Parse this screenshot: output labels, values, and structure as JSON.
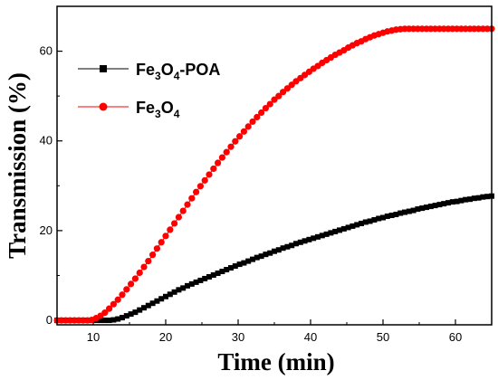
{
  "chart_data": {
    "type": "scatter",
    "xlabel": "Time (min)",
    "ylabel": "Transmission (%)",
    "xlim": [
      5,
      65
    ],
    "ylim": [
      -1,
      70
    ],
    "xticks": [
      10,
      20,
      30,
      40,
      50,
      60
    ],
    "yticks": [
      0,
      20,
      40,
      60
    ],
    "grid": false,
    "legend_position": "top-left",
    "series": [
      {
        "name": "Fe3O4-POA",
        "legend_parts": [
          {
            "text": "Fe",
            "sub": false
          },
          {
            "text": "3",
            "sub": true
          },
          {
            "text": "O",
            "sub": false
          },
          {
            "text": "4",
            "sub": true
          },
          {
            "text": "-POA",
            "sub": false
          }
        ],
        "color": "#000000",
        "marker": "square",
        "x_start": 5,
        "x_step": 0.6,
        "values": [
          0,
          0,
          0,
          0,
          0,
          0,
          0,
          0,
          0,
          0,
          0,
          0,
          0,
          0.1,
          0.3,
          0.6,
          1.0,
          1.4,
          1.8,
          2.3,
          2.8,
          3.3,
          3.8,
          4.3,
          4.8,
          5.3,
          5.8,
          6.3,
          6.8,
          7.2,
          7.7,
          8.1,
          8.5,
          8.9,
          9.3,
          9.7,
          10.1,
          10.5,
          10.9,
          11.3,
          11.7,
          12.1,
          12.5,
          12.8,
          13.2,
          13.6,
          14.0,
          14.3,
          14.7,
          15.0,
          15.4,
          15.7,
          16.1,
          16.4,
          16.7,
          17.1,
          17.4,
          17.7,
          18.0,
          18.3,
          18.6,
          18.9,
          19.2,
          19.5,
          19.8,
          20.1,
          20.4,
          20.7,
          21.0,
          21.3,
          21.6,
          21.9,
          22.1,
          22.4,
          22.7,
          22.9,
          23.2,
          23.4,
          23.6,
          23.9,
          24.1,
          24.3,
          24.5,
          24.8,
          25.0,
          25.2,
          25.4,
          25.6,
          25.8,
          26.0,
          26.2,
          26.4,
          26.5,
          26.7,
          26.9,
          27.0,
          27.2,
          27.3,
          27.5,
          27.6,
          27.7
        ]
      },
      {
        "name": "Fe3O4",
        "legend_parts": [
          {
            "text": "Fe",
            "sub": false
          },
          {
            "text": "3",
            "sub": true
          },
          {
            "text": "O",
            "sub": false
          },
          {
            "text": "4",
            "sub": true
          }
        ],
        "color": "#ff0000",
        "marker": "circle",
        "x_start": 5,
        "x_step": 0.6,
        "values": [
          0,
          0,
          0,
          0,
          0,
          0,
          0,
          0,
          0.1,
          0.5,
          1.0,
          1.7,
          2.6,
          3.6,
          4.6,
          5.7,
          6.9,
          8.1,
          9.3,
          10.6,
          11.9,
          13.2,
          14.6,
          16.0,
          17.4,
          18.8,
          20.2,
          21.6,
          23.0,
          24.4,
          25.8,
          27.2,
          28.6,
          29.9,
          31.2,
          32.5,
          33.8,
          35.1,
          36.3,
          37.5,
          38.7,
          39.9,
          41.0,
          42.1,
          43.2,
          44.3,
          45.3,
          46.3,
          47.3,
          48.2,
          49.2,
          50.0,
          50.9,
          51.7,
          52.5,
          53.3,
          54.0,
          54.7,
          55.4,
          56.1,
          56.7,
          57.4,
          58.0,
          58.6,
          59.2,
          59.7,
          60.2,
          60.8,
          61.3,
          61.8,
          62.2,
          62.7,
          63.1,
          63.5,
          63.8,
          64.1,
          64.4,
          64.6,
          64.8,
          64.9,
          65.0,
          65.0,
          65.0,
          65.0,
          65.0,
          65.0,
          65.0,
          65.0,
          65.0,
          65.0,
          65.0,
          65.0,
          65.0,
          65.0,
          65.0,
          65.0,
          65.0,
          65.0,
          65.0,
          65.0,
          65.0
        ]
      }
    ]
  }
}
